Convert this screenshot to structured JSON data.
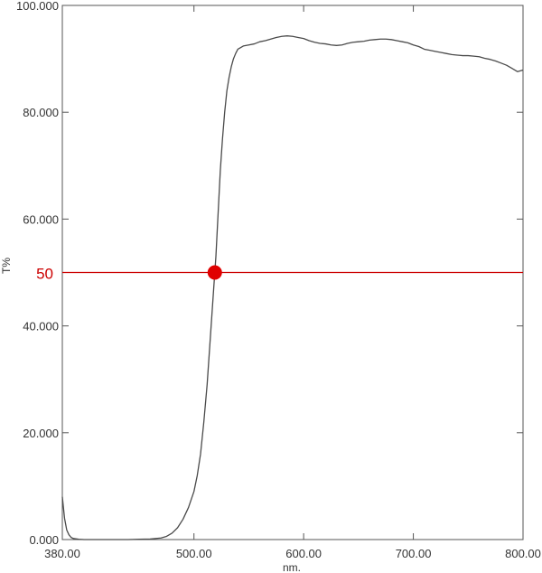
{
  "chart_data": {
    "type": "line",
    "title": "",
    "xlabel": "nm.",
    "ylabel": "T%",
    "xlim": [
      380,
      800
    ],
    "ylim": [
      0,
      100
    ],
    "x_ticks": [
      380,
      500,
      600,
      700,
      800
    ],
    "x_tick_labels": [
      "380.00",
      "500.00",
      "600.00",
      "700.00",
      "800.00"
    ],
    "y_ticks": [
      0,
      20,
      40,
      60,
      80,
      100
    ],
    "y_tick_labels": [
      "0.000",
      "20.000",
      "40.000",
      "60.000",
      "80.000",
      "100.000"
    ],
    "grid": false,
    "colors": {
      "curve": "#4a4a4a",
      "reference": "#cc0000",
      "marker": "#e00000",
      "axes": "#555555"
    },
    "series": [
      {
        "x": [
          380,
          382,
          384,
          386,
          388,
          390,
          395,
          400,
          410,
          420,
          430,
          440,
          450,
          460,
          470,
          475,
          480,
          485,
          490,
          495,
          500,
          503,
          506,
          509,
          512,
          514,
          516,
          518,
          519,
          520,
          521,
          522,
          523,
          524,
          525,
          526,
          527,
          528,
          529,
          530,
          532,
          534,
          536,
          538,
          540,
          545,
          550,
          555,
          560,
          565,
          570,
          575,
          580,
          585,
          590,
          595,
          600,
          605,
          610,
          615,
          620,
          625,
          630,
          635,
          640,
          645,
          650,
          655,
          660,
          665,
          670,
          675,
          680,
          685,
          690,
          695,
          700,
          705,
          710,
          715,
          720,
          725,
          730,
          735,
          740,
          745,
          750,
          755,
          760,
          765,
          770,
          775,
          780,
          785,
          790,
          795,
          800
        ],
        "y": [
          8,
          4,
          1.8,
          0.9,
          0.4,
          0.2,
          0.05,
          0,
          0,
          0,
          0,
          0,
          0.05,
          0.1,
          0.3,
          0.6,
          1.2,
          2.2,
          3.8,
          6,
          9,
          12,
          16,
          22,
          29,
          35,
          41,
          47,
          50,
          53,
          57,
          61,
          65,
          69,
          72,
          75,
          77.5,
          80,
          82,
          84,
          86.5,
          88.5,
          90,
          91,
          91.8,
          92.4,
          92.6,
          92.8,
          93.2,
          93.4,
          93.7,
          94,
          94.2,
          94.3,
          94.2,
          94,
          93.8,
          93.4,
          93.1,
          92.9,
          92.8,
          92.6,
          92.5,
          92.6,
          92.9,
          93.1,
          93.2,
          93.3,
          93.5,
          93.6,
          93.7,
          93.7,
          93.6,
          93.4,
          93.2,
          93,
          92.6,
          92.3,
          91.8,
          91.6,
          91.4,
          91.2,
          91,
          90.8,
          90.7,
          90.6,
          90.6,
          90.5,
          90.4,
          90.1,
          89.9,
          89.6,
          89.2,
          88.8,
          88.2,
          87.6,
          87.9
        ]
      }
    ],
    "reference_line": {
      "y": 50,
      "label": "50"
    },
    "marker_point": {
      "x": 519,
      "y": 50
    }
  }
}
